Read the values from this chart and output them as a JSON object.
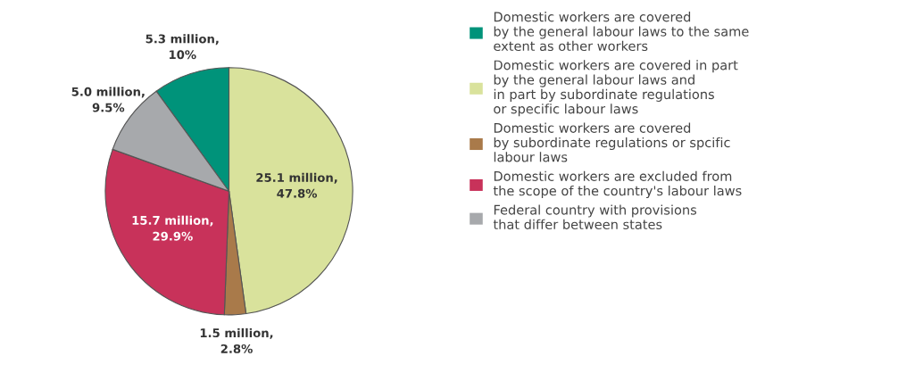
{
  "chart_data": {
    "type": "pie",
    "categories": [
      "Domestic workers are covered\nby the general labour laws to the same\nextent as other workers",
      "Domestic workers are covered in part\nby the general labour laws and\nin part by subordinate regulations\nor specific labour laws",
      "Domestic workers are covered\nby subordinate regulations or spcific\nlabour laws",
      "Domestic workers are excluded from\nthe scope of the country's labour laws",
      "Federal country with provisions\nthat differ between states"
    ],
    "values": [
      10,
      47.8,
      2.8,
      29.9,
      9.5
    ],
    "value_labels": [
      "5.3 million,\n10%",
      "25.1 million,\n47.8%",
      "1.5 million,\n2.8%",
      "15.7 million,\n29.9%",
      "5.0 million,\n9.5%"
    ],
    "colors": [
      "#00937a",
      "#d9e29c",
      "#a97a4a",
      "#c8325a",
      "#a7a9ac"
    ],
    "legend": "right"
  }
}
